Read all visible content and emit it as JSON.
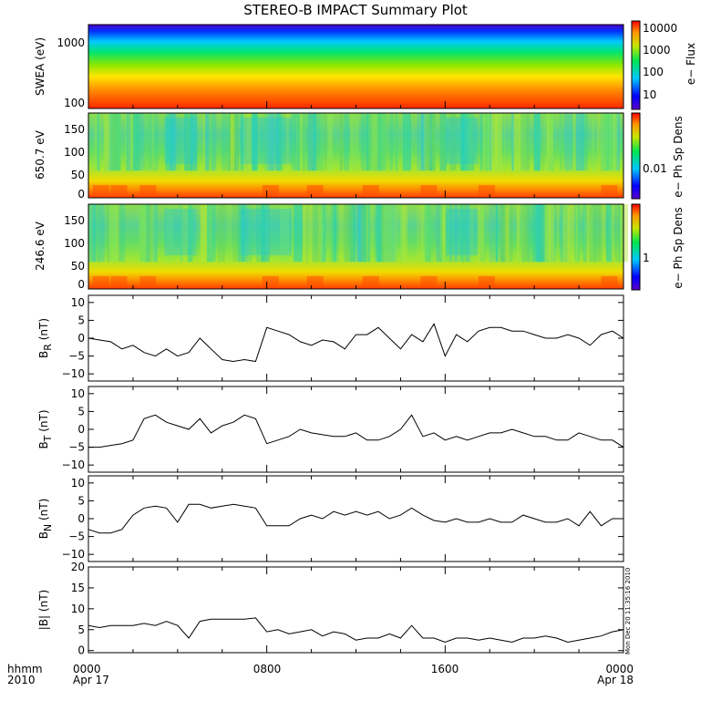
{
  "chart_data": {
    "title": "STEREO-B IMPACT Summary Plot",
    "type": "timeseries-stack",
    "x_axis": {
      "range_hours": [
        0,
        24
      ],
      "tick_labels": [
        "0000",
        "0800",
        "1600",
        "0000"
      ],
      "date_labels": [
        "Apr 17",
        "",
        "",
        "Apr 18"
      ],
      "left_label_top": "hhmm",
      "left_label_bottom": "2010"
    },
    "panels": [
      {
        "id": "swea",
        "type": "heatmap",
        "ylabel": "SWEA (eV)",
        "y_ticks": [
          "1000",
          "100"
        ],
        "colorbar_label": "e− Flux",
        "colorbar_ticks": [
          "10000",
          "1000",
          "100",
          "10"
        ]
      },
      {
        "id": "pad650",
        "type": "heatmap",
        "ylabel": "650.7 eV",
        "y_ticks": [
          "150",
          "100",
          "50",
          "0"
        ],
        "colorbar_label": "e− Ph Sp Dens",
        "colorbar_ticks": [
          "0.01"
        ]
      },
      {
        "id": "pad246",
        "type": "heatmap",
        "ylabel": "246.6 eV",
        "y_ticks": [
          "150",
          "100",
          "50",
          "0"
        ],
        "colorbar_label": "e− Ph Sp Dens",
        "colorbar_ticks": [
          "1"
        ]
      },
      {
        "id": "br",
        "type": "line",
        "ylabel_main": "B",
        "ylabel_sub": "R",
        "ylabel_unit": " (nT)",
        "ylim": [
          -12,
          12
        ],
        "y_ticks": [
          10,
          5,
          0,
          -5,
          -10
        ],
        "y_tick_labels": [
          "10",
          "5",
          "0",
          "−5",
          "−10"
        ],
        "x": [
          0,
          0.5,
          1,
          1.5,
          2,
          2.5,
          3,
          3.5,
          4,
          4.5,
          5,
          5.5,
          6,
          6.5,
          7,
          7.5,
          8,
          8.5,
          9,
          9.5,
          10,
          10.5,
          11,
          11.5,
          12,
          12.5,
          13,
          13.5,
          14,
          14.5,
          15,
          15.5,
          16,
          16.5,
          17,
          17.5,
          18,
          18.5,
          19,
          19.5,
          20,
          20.5,
          21,
          21.5,
          22,
          22.5,
          23,
          23.5,
          24
        ],
        "y": [
          0,
          -0.5,
          -1,
          -3,
          -2,
          -4,
          -5,
          -3,
          -5,
          -4,
          0,
          -3,
          -6,
          -6.5,
          -6,
          -6.5,
          3,
          2,
          1,
          -1,
          -2,
          -0.5,
          -1,
          -3,
          1,
          1,
          3,
          0,
          -3,
          1,
          -1,
          4,
          -5,
          1,
          -1,
          2,
          3,
          3,
          2,
          2,
          1,
          0,
          0,
          1,
          0,
          -2,
          1,
          2,
          0
        ]
      },
      {
        "id": "bt",
        "type": "line",
        "ylabel_main": "B",
        "ylabel_sub": "T",
        "ylabel_unit": " (nT)",
        "ylim": [
          -12,
          12
        ],
        "y_ticks": [
          10,
          5,
          0,
          -5,
          -10
        ],
        "y_tick_labels": [
          "10",
          "5",
          "0",
          "−5",
          "−10"
        ],
        "x": [
          0,
          0.5,
          1,
          1.5,
          2,
          2.5,
          3,
          3.5,
          4,
          4.5,
          5,
          5.5,
          6,
          6.5,
          7,
          7.5,
          8,
          8.5,
          9,
          9.5,
          10,
          10.5,
          11,
          11.5,
          12,
          12.5,
          13,
          13.5,
          14,
          14.5,
          15,
          15.5,
          16,
          16.5,
          17,
          17.5,
          18,
          18.5,
          19,
          19.5,
          20,
          20.5,
          21,
          21.5,
          22,
          22.5,
          23,
          23.5,
          24
        ],
        "y": [
          -5,
          -5,
          -4.5,
          -4,
          -3,
          3,
          4,
          2,
          1,
          0,
          3,
          -1,
          1,
          2,
          4,
          3,
          -4,
          -3,
          -2,
          0,
          -1,
          -1.5,
          -2,
          -2,
          -1,
          -3,
          -3,
          -2,
          0,
          4,
          -2,
          -1,
          -3,
          -2,
          -3,
          -2,
          -1,
          -1,
          0,
          -1,
          -2,
          -2,
          -3,
          -3,
          -1,
          -2,
          -3,
          -3,
          -5
        ]
      },
      {
        "id": "bn",
        "type": "line",
        "ylabel_main": "B",
        "ylabel_sub": "N",
        "ylabel_unit": " (nT)",
        "ylim": [
          -12,
          12
        ],
        "y_ticks": [
          10,
          5,
          0,
          -5,
          -10
        ],
        "y_tick_labels": [
          "10",
          "5",
          "0",
          "−5",
          "−10"
        ],
        "x": [
          0,
          0.5,
          1,
          1.5,
          2,
          2.5,
          3,
          3.5,
          4,
          4.5,
          5,
          5.5,
          6,
          6.5,
          7,
          7.5,
          8,
          8.5,
          9,
          9.5,
          10,
          10.5,
          11,
          11.5,
          12,
          12.5,
          13,
          13.5,
          14,
          14.5,
          15,
          15.5,
          16,
          16.5,
          17,
          17.5,
          18,
          18.5,
          19,
          19.5,
          20,
          20.5,
          21,
          21.5,
          22,
          22.5,
          23,
          23.5,
          24
        ],
        "y": [
          -3,
          -4,
          -4,
          -3,
          1,
          3,
          3.5,
          3,
          -1,
          4,
          4,
          3,
          3.5,
          4,
          3.5,
          3,
          -2,
          -2,
          -2,
          0,
          1,
          0,
          2,
          1,
          2,
          1,
          2,
          0,
          1,
          3,
          1,
          -0.5,
          -1,
          0,
          -1,
          -1,
          0,
          -1,
          -1,
          1,
          0,
          -1,
          -1,
          0,
          -2,
          2,
          -2,
          0,
          0
        ]
      },
      {
        "id": "bmag",
        "type": "line",
        "ylabel": "|B| (nT)",
        "ylim": [
          -0.5,
          20
        ],
        "y_ticks": [
          20,
          15,
          10,
          5,
          0
        ],
        "y_tick_labels": [
          "20",
          "15",
          "10",
          "5",
          "0"
        ],
        "x": [
          0,
          0.5,
          1,
          1.5,
          2,
          2.5,
          3,
          3.5,
          4,
          4.5,
          5,
          5.5,
          6,
          6.5,
          7,
          7.5,
          8,
          8.5,
          9,
          9.5,
          10,
          10.5,
          11,
          11.5,
          12,
          12.5,
          13,
          13.5,
          14,
          14.5,
          15,
          15.5,
          16,
          16.5,
          17,
          17.5,
          18,
          18.5,
          19,
          19.5,
          20,
          20.5,
          21,
          21.5,
          22,
          22.5,
          23,
          23.5,
          24
        ],
        "y": [
          6,
          5.5,
          6,
          6,
          6,
          6.5,
          6,
          7,
          6,
          3,
          7,
          7.5,
          7.5,
          7.5,
          7.5,
          7.8,
          4.5,
          5,
          4,
          4.5,
          5,
          3.5,
          4.5,
          4,
          2.5,
          3,
          3,
          4,
          3,
          6,
          3,
          3,
          2,
          3,
          3,
          2.5,
          3,
          2.5,
          2,
          3,
          3,
          3.5,
          3,
          2,
          2.5,
          3,
          3.5,
          4.5,
          5
        ]
      }
    ],
    "timestamp_vertical": "Mon Dec 20 11:35:16 2010"
  }
}
